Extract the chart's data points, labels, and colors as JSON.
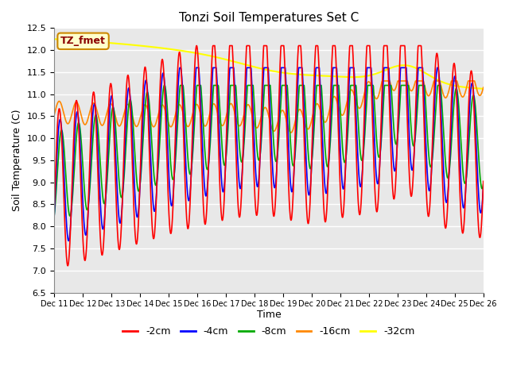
{
  "title": "Tonzi Soil Temperatures Set C",
  "xlabel": "Time",
  "ylabel": "Soil Temperature (C)",
  "ylim": [
    6.5,
    12.5
  ],
  "yticks": [
    6.5,
    7.0,
    7.5,
    8.0,
    8.5,
    9.0,
    9.5,
    10.0,
    10.5,
    11.0,
    11.5,
    12.0,
    12.5
  ],
  "xtick_labels": [
    "Dec 11",
    "Dec 12",
    "Dec 13",
    "Dec 14",
    "Dec 15",
    "Dec 16",
    "Dec 17",
    "Dec 18",
    "Dec 19",
    "Dec 20",
    "Dec 21",
    "Dec 22",
    "Dec 23",
    "Dec 24",
    "Dec 25",
    "Dec 26"
  ],
  "colors": {
    "-2cm": "#ff0000",
    "-4cm": "#0000ff",
    "-8cm": "#00aa00",
    "-16cm": "#ff8800",
    "-32cm": "#ffff00"
  },
  "legend_label": "TZ_fmet",
  "background_color": "#e8e8e8",
  "n_points": 1500
}
